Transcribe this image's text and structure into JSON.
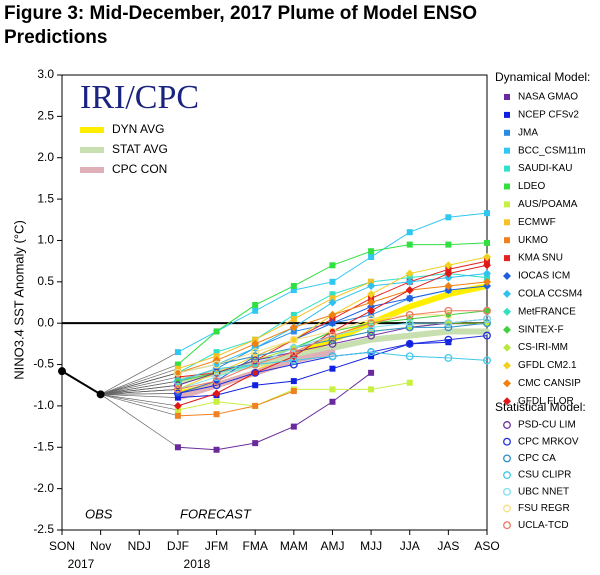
{
  "chart_data": {
    "type": "line",
    "title": "Figure 3: Mid-December, 2017 Plume of Model ENSO",
    "title_line2": "Predictions",
    "y_label": "NINO3.4 SST Anomaly (°C)",
    "inset_title": "IRI/CPC",
    "annotations": [
      "OBS",
      "FORECAST"
    ],
    "categories": [
      "SON",
      "Nov",
      "NDJ",
      "DJF",
      "JFM",
      "FMA",
      "MAM",
      "AMJ",
      "MJJ",
      "JJA",
      "JAS",
      "ASO"
    ],
    "year_labels": [
      {
        "category": 0,
        "label": "2017"
      },
      {
        "category": 3,
        "label": "2018"
      }
    ],
    "ylim": [
      -2.5,
      3
    ],
    "yticks": [
      {
        "value": -2.5,
        "label": "-2.5"
      },
      {
        "value": -2,
        "label": "-2.0"
      },
      -1.5,
      {
        "value": -1,
        "label": "-1.0"
      },
      -0.5,
      {
        "value": 0,
        "label": "0.0"
      },
      0.5,
      {
        "value": 1,
        "label": "1.0"
      },
      1.5,
      {
        "value": 2,
        "label": "2.0"
      },
      2.5,
      {
        "value": 3,
        "label": "3.0"
      }
    ],
    "observed": {
      "color": "#000000",
      "values": [
        -0.58,
        -0.86,
        null,
        null,
        null,
        null,
        null,
        null,
        null,
        null,
        null,
        null
      ]
    },
    "averages": {
      "series": [
        {
          "name": "DYN AVG",
          "color": "#ffee00",
          "values": [
            null,
            null,
            null,
            -0.85,
            -0.75,
            -0.6,
            -0.4,
            -0.2,
            0.0,
            0.2,
            0.35,
            0.45
          ]
        },
        {
          "name": "STAT AVG",
          "color": "#c8dfb0",
          "values": [
            null,
            null,
            null,
            -0.7,
            -0.6,
            -0.5,
            -0.4,
            -0.3,
            -0.2,
            -0.15,
            -0.1,
            -0.1
          ]
        },
        {
          "name": "CPC CON",
          "color": "#e0b0b8",
          "values": [
            null,
            null,
            null,
            -0.9,
            -0.75,
            -0.6,
            -0.45,
            -0.35,
            null,
            null,
            null,
            null
          ]
        }
      ]
    },
    "dynamical": {
      "title": "Dynamical Model:",
      "series": [
        {
          "name": "NASA GMAO",
          "color": "#6a2a9e",
          "marker": "square",
          "values": [
            null,
            null,
            null,
            -1.5,
            -1.53,
            -1.45,
            -1.25,
            -0.95,
            -0.6,
            null,
            null,
            null
          ]
        },
        {
          "name": "NCEP CFSv2",
          "color": "#1020e0",
          "marker": "square",
          "values": [
            null,
            null,
            null,
            -0.9,
            -0.87,
            -0.75,
            -0.7,
            -0.55,
            -0.4,
            -0.25,
            -0.23,
            null
          ]
        },
        {
          "name": "JMA",
          "color": "#2a8ae8",
          "marker": "square",
          "values": [
            null,
            null,
            null,
            -0.7,
            -0.55,
            -0.3,
            -0.1,
            0.0,
            0.1,
            0.3,
            0.4,
            null
          ]
        },
        {
          "name": "BCC_CSM11m",
          "color": "#30c8f0",
          "marker": "square",
          "values": [
            null,
            null,
            null,
            -0.35,
            -0.1,
            0.15,
            0.4,
            0.5,
            0.8,
            1.1,
            1.28,
            1.33
          ]
        },
        {
          "name": "SAUDI-KAU",
          "color": "#30e0c8",
          "marker": "square",
          "values": [
            null,
            null,
            null,
            -0.6,
            -0.35,
            -0.2,
            0.1,
            0.35,
            0.5,
            0.55,
            0.6,
            0.55
          ]
        },
        {
          "name": "LDEO",
          "color": "#30e040",
          "marker": "square",
          "values": [
            null,
            null,
            null,
            -0.5,
            -0.1,
            0.22,
            0.45,
            0.7,
            0.87,
            0.95,
            0.95,
            0.97
          ]
        },
        {
          "name": "AUS/POAMA",
          "color": "#c8f040",
          "marker": "square",
          "values": [
            null,
            null,
            null,
            -1.05,
            -0.95,
            -1.0,
            -0.8,
            -0.8,
            -0.8,
            -0.72,
            null,
            null
          ]
        },
        {
          "name": "ECMWF",
          "color": "#f8c020",
          "marker": "square",
          "values": [
            null,
            null,
            null,
            -0.55,
            -0.4,
            -0.2,
            0.05,
            0.3,
            0.5,
            null,
            null,
            null
          ]
        },
        {
          "name": "UKMO",
          "color": "#f08020",
          "marker": "square",
          "values": [
            null,
            null,
            null,
            -1.12,
            -1.1,
            -1.0,
            -0.82,
            null,
            null,
            null,
            null,
            null
          ]
        },
        {
          "name": "KMA SNU",
          "color": "#e82020",
          "marker": "square",
          "values": [
            null,
            null,
            null,
            -0.65,
            -0.6,
            -0.45,
            -0.2,
            0.05,
            0.3,
            0.5,
            0.65,
            0.75
          ]
        },
        {
          "name": "IOCAS ICM",
          "color": "#2060e0",
          "marker": "diamond",
          "values": [
            null,
            null,
            null,
            -0.85,
            -0.7,
            -0.4,
            -0.2,
            0.0,
            0.2,
            0.3,
            0.4,
            0.45
          ]
        },
        {
          "name": "COLA CCSM4",
          "color": "#30c0f0",
          "marker": "diamond",
          "values": [
            null,
            null,
            null,
            -0.6,
            -0.5,
            -0.3,
            -0.05,
            0.25,
            0.45,
            0.5,
            0.55,
            0.6
          ]
        },
        {
          "name": "MetFRANCE",
          "color": "#30e0c0",
          "marker": "diamond",
          "values": [
            null,
            null,
            null,
            -0.75,
            -0.6,
            -0.5,
            -0.3,
            -0.1,
            null,
            null,
            null,
            null
          ]
        },
        {
          "name": "SINTEX-F",
          "color": "#40d040",
          "marker": "diamond",
          "values": [
            null,
            null,
            null,
            -0.7,
            -0.6,
            -0.45,
            -0.3,
            -0.1,
            0.0,
            0.05,
            0.1,
            0.15
          ]
        },
        {
          "name": "CS-IRI-MM",
          "color": "#b8e840",
          "marker": "diamond",
          "values": [
            null,
            null,
            null,
            -0.75,
            -0.6,
            -0.45,
            -0.3,
            -0.2,
            -0.1,
            -0.05,
            0.0,
            0.0
          ]
        },
        {
          "name": "GFDL CM2.1",
          "color": "#f0d020",
          "marker": "diamond",
          "values": [
            null,
            null,
            null,
            -0.8,
            -0.6,
            -0.4,
            -0.2,
            0.1,
            0.35,
            0.6,
            0.7,
            0.8
          ]
        },
        {
          "name": "CMC CANSIP",
          "color": "#f08010",
          "marker": "diamond",
          "values": [
            null,
            null,
            null,
            -0.6,
            -0.45,
            -0.25,
            -0.05,
            0.1,
            0.25,
            0.4,
            0.45,
            0.5
          ]
        },
        {
          "name": "GFDL FLOR",
          "color": "#e01818",
          "marker": "diamond",
          "values": [
            null,
            null,
            null,
            -1.0,
            -0.85,
            -0.6,
            -0.4,
            -0.1,
            0.15,
            0.4,
            0.6,
            0.7
          ]
        }
      ]
    },
    "statistical": {
      "title": "Statistical Model:",
      "series": [
        {
          "name": "PSD-CU LIM",
          "color": "#7030a0",
          "marker": "circle",
          "values": [
            null,
            null,
            null,
            -0.75,
            -0.6,
            -0.45,
            -0.35,
            -0.25,
            -0.15,
            -0.05,
            0.0,
            0.05
          ]
        },
        {
          "name": "CPC MRKOV",
          "color": "#2030e0",
          "marker": "circle",
          "values": [
            null,
            null,
            null,
            -0.85,
            -0.75,
            -0.6,
            -0.5,
            -0.4,
            -0.35,
            -0.25,
            -0.2,
            -0.15
          ]
        },
        {
          "name": "CPC CA",
          "color": "#3090c8",
          "marker": "circle",
          "values": [
            null,
            null,
            null,
            -0.6,
            -0.5,
            -0.4,
            -0.3,
            -0.2,
            -0.1,
            -0.05,
            -0.05,
            0.0
          ]
        },
        {
          "name": "CSU CLIPR",
          "color": "#40c8e8",
          "marker": "circle",
          "values": [
            null,
            null,
            null,
            -0.7,
            -0.55,
            -0.5,
            -0.45,
            -0.4,
            -0.35,
            -0.4,
            -0.42,
            -0.45
          ]
        },
        {
          "name": "UBC NNET",
          "color": "#80e0f0",
          "marker": "circle",
          "values": [
            null,
            null,
            null,
            -0.8,
            -0.65,
            -0.5,
            -0.3,
            -0.15,
            -0.05,
            0.0,
            0.0,
            0.05
          ]
        },
        {
          "name": "FSU REGR",
          "color": "#f8e080",
          "marker": "circle",
          "values": [
            null,
            null,
            null,
            -0.6,
            -0.5,
            -0.35,
            -0.2,
            -0.1,
            0.05,
            0.1,
            0.1,
            null
          ]
        },
        {
          "name": "UCLA-TCD",
          "color": "#f07860",
          "marker": "circle",
          "values": [
            null,
            null,
            null,
            -0.8,
            -0.7,
            -0.5,
            -0.35,
            -0.15,
            0.0,
            0.1,
            0.15,
            0.15
          ]
        }
      ]
    }
  }
}
